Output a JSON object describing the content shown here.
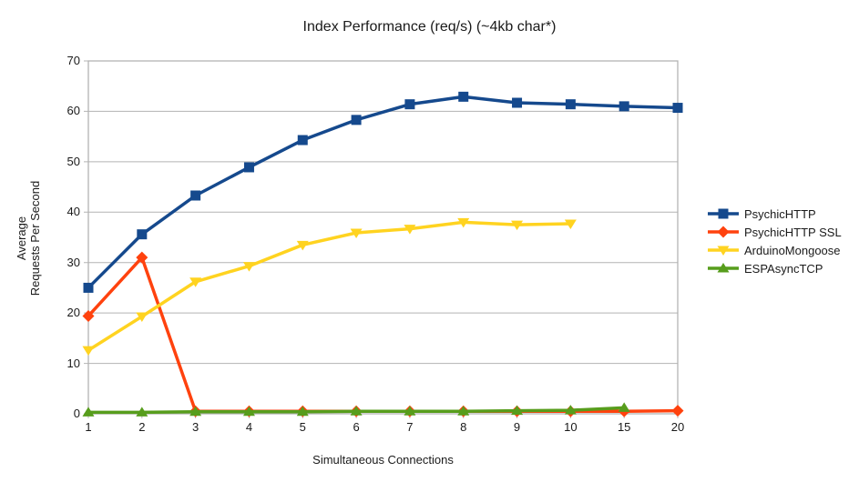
{
  "chart_data": {
    "type": "line",
    "title": "Index Performance (req/s) (~4kb char*)",
    "xlabel": "Simultaneous Connections",
    "ylabel": "Average Requests Per Second",
    "ylabel_display": "Average\nRequests Per Second",
    "categories": [
      "1",
      "2",
      "3",
      "4",
      "5",
      "6",
      "7",
      "8",
      "9",
      "10",
      "15",
      "20"
    ],
    "y_ticks": [
      0,
      10,
      20,
      30,
      40,
      50,
      60,
      70
    ],
    "ylim": [
      0,
      70
    ],
    "grid": "horizontal-only",
    "legend_position": "right",
    "series": [
      {
        "name": "PsychicHTTP",
        "color": "#15498D",
        "marker": "square",
        "values": [
          25.0,
          35.6,
          43.3,
          48.9,
          54.3,
          58.3,
          61.4,
          62.9,
          61.7,
          61.4,
          61.0,
          60.7
        ]
      },
      {
        "name": "PsychicHTTP SSL",
        "color": "#FF420E",
        "marker": "diamond",
        "values": [
          19.4,
          31.0,
          0.5,
          0.5,
          0.5,
          0.5,
          0.5,
          0.5,
          0.5,
          0.5,
          0.5,
          0.6
        ]
      },
      {
        "name": "ArduinoMongoose",
        "color": "#FFD320",
        "marker": "triangle-down",
        "values": [
          12.6,
          19.3,
          26.2,
          29.3,
          33.5,
          35.9,
          36.7,
          38.0,
          37.5,
          37.7,
          null,
          null
        ]
      },
      {
        "name": "ESPAsyncTCP",
        "color": "#579D1C",
        "marker": "triangle-up",
        "values": [
          0.3,
          0.3,
          0.4,
          0.4,
          0.4,
          0.5,
          0.5,
          0.5,
          0.6,
          0.7,
          1.2,
          null
        ]
      }
    ],
    "colors": {
      "grid": "#b3b3b3",
      "plot_border": "#b3b3b3",
      "text": "#1a1a1a",
      "background": "#ffffff"
    }
  }
}
